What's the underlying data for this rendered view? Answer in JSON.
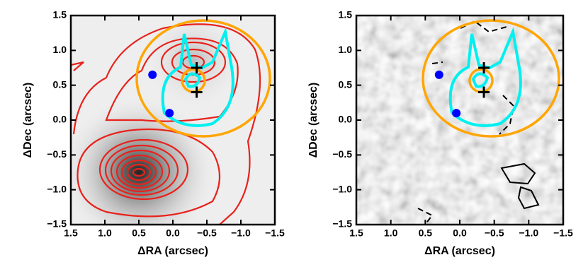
{
  "chart_data": [
    {
      "type": "scatter",
      "xlabel": "ΔRA (arcsec)",
      "ylabel": "ΔDec (arcsec)",
      "xlim": [
        1.5,
        -1.5
      ],
      "ylim": [
        -1.5,
        1.5
      ],
      "xticks": [
        1.5,
        {
          "value": 1,
          "label": "1.0"
        },
        0.5,
        {
          "value": 0,
          "label": "0.0"
        },
        {
          "value": -0.5,
          "label": "−0.5"
        },
        {
          "value": -1,
          "label": "−1.0"
        },
        {
          "value": -1.5,
          "label": "−1.5"
        }
      ],
      "yticks": [
        {
          "value": -1.5,
          "label": "−1.5"
        },
        {
          "value": -1,
          "label": "−1.0"
        },
        {
          "value": -0.5,
          "label": "−0.5"
        },
        {
          "value": 0,
          "label": "0.0"
        },
        0.5,
        {
          "value": 1,
          "label": "1.0"
        },
        1.5
      ],
      "series": [
        {
          "marker": "circle",
          "color": "#0000ff",
          "x": [
            0.3,
            0.05
          ],
          "values": [
            0.65,
            0.1
          ]
        },
        {
          "marker": "plus",
          "color": "#000000",
          "x": [
            -0.35,
            -0.35
          ],
          "values": [
            0.75,
            0.4
          ]
        }
      ]
    },
    {
      "type": "scatter",
      "xlabel": "ΔRA (arcsec)",
      "ylabel": "ΔDec (arcsec)",
      "xlim": [
        1.5,
        -1.5
      ],
      "ylim": [
        -1.5,
        1.5
      ],
      "xticks": [
        1.5,
        {
          "value": 1,
          "label": "1.0"
        },
        0.5,
        {
          "value": 0,
          "label": "0.0"
        },
        {
          "value": -0.5,
          "label": "−0.5"
        },
        {
          "value": -1,
          "label": "−1.0"
        },
        {
          "value": -1.5,
          "label": "−1.5"
        }
      ],
      "yticks": [
        {
          "value": -1.5,
          "label": "−1.5"
        },
        {
          "value": -1,
          "label": "−1.0"
        },
        {
          "value": -0.5,
          "label": "−0.5"
        },
        {
          "value": 0,
          "label": "0.0"
        },
        0.5,
        {
          "value": 1,
          "label": "1.0"
        },
        1.5
      ],
      "series": [
        {
          "marker": "circle",
          "color": "#0000ff",
          "x": [
            0.3,
            0.05
          ],
          "values": [
            0.65,
            0.1
          ]
        },
        {
          "marker": "plus",
          "color": "#000000",
          "x": [
            -0.35,
            -0.35
          ],
          "values": [
            0.75,
            0.4
          ]
        }
      ]
    }
  ]
}
